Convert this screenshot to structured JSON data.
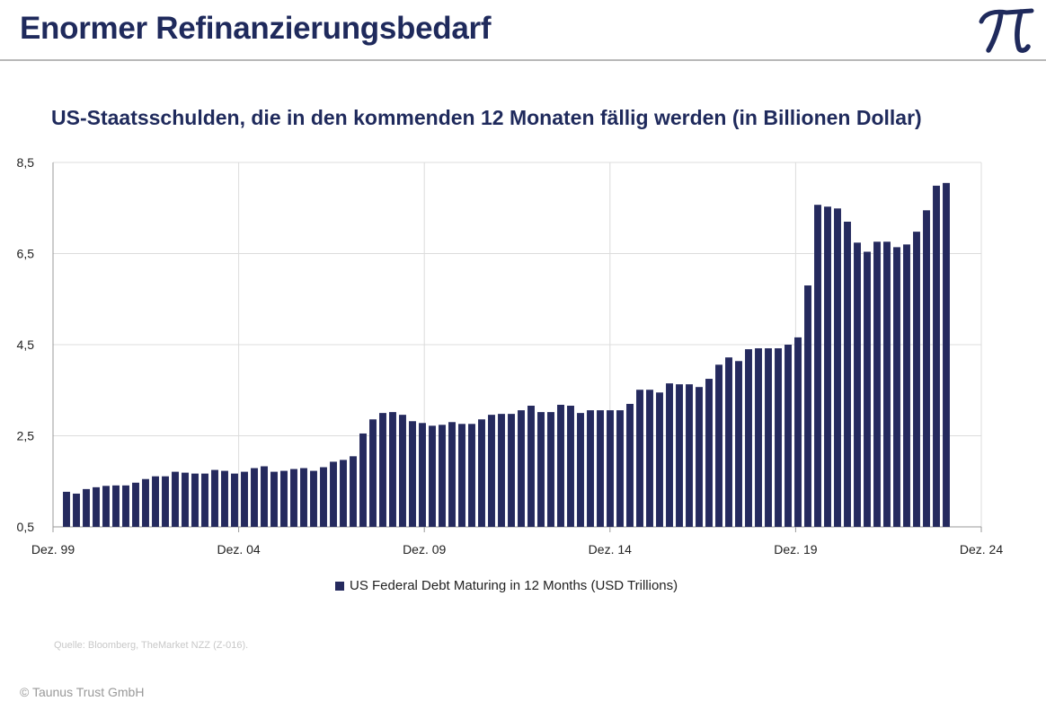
{
  "header": {
    "title": "Enormer Refinanzierungsbedarf",
    "logo_icon": "pi-logo-icon"
  },
  "chart_data": {
    "type": "bar",
    "title": "US-Staatsschulden, die in den kommenden 12 Monaten fällig werden (in Billionen Dollar)",
    "xlabel": "",
    "ylabel": "",
    "ylim": [
      0.5,
      8.5
    ],
    "yticks": [
      "0,5",
      "2,5",
      "4,5",
      "6,5",
      "8,5"
    ],
    "ytick_values": [
      0.5,
      2.5,
      4.5,
      6.5,
      8.5
    ],
    "xticks": [
      "Dez. 99",
      "Dez. 04",
      "Dez. 09",
      "Dez. 14",
      "Dez. 19",
      "Dez. 24"
    ],
    "xlim_years": [
      1999.92,
      2024.92
    ],
    "x_start_year": 2000.0,
    "x_step_years": 0.25,
    "grid": true,
    "legend_position": "bottom-center",
    "series": [
      {
        "name": "US Federal Debt Maturing in 12 Months (USD Trillions)",
        "color": "#252a5e",
        "values": [
          1.27,
          1.23,
          1.33,
          1.37,
          1.4,
          1.41,
          1.41,
          1.47,
          1.55,
          1.61,
          1.61,
          1.71,
          1.69,
          1.67,
          1.67,
          1.75,
          1.73,
          1.67,
          1.71,
          1.79,
          1.83,
          1.71,
          1.73,
          1.77,
          1.79,
          1.73,
          1.81,
          1.93,
          1.97,
          2.05,
          2.55,
          2.86,
          3.0,
          3.02,
          2.96,
          2.82,
          2.78,
          2.72,
          2.74,
          2.8,
          2.76,
          2.76,
          2.86,
          2.96,
          2.98,
          2.98,
          3.06,
          3.16,
          3.02,
          3.02,
          3.18,
          3.16,
          3.0,
          3.06,
          3.06,
          3.06,
          3.06,
          3.2,
          3.51,
          3.51,
          3.45,
          3.65,
          3.63,
          3.63,
          3.57,
          3.75,
          4.06,
          4.22,
          4.14,
          4.4,
          4.42,
          4.42,
          4.42,
          4.5,
          4.66,
          5.8,
          7.57,
          7.53,
          7.49,
          7.2,
          6.74,
          6.54,
          6.76,
          6.76,
          6.64,
          6.7,
          6.98,
          7.45,
          7.99,
          8.05
        ]
      }
    ]
  },
  "legend": {
    "label": "US Federal Debt Maturing in 12 Months (USD Trillions)"
  },
  "footer": {
    "source": "Quelle: Bloomberg, TheMarket NZZ (Z-016).",
    "copyright": "© Taunus Trust GmbH"
  }
}
